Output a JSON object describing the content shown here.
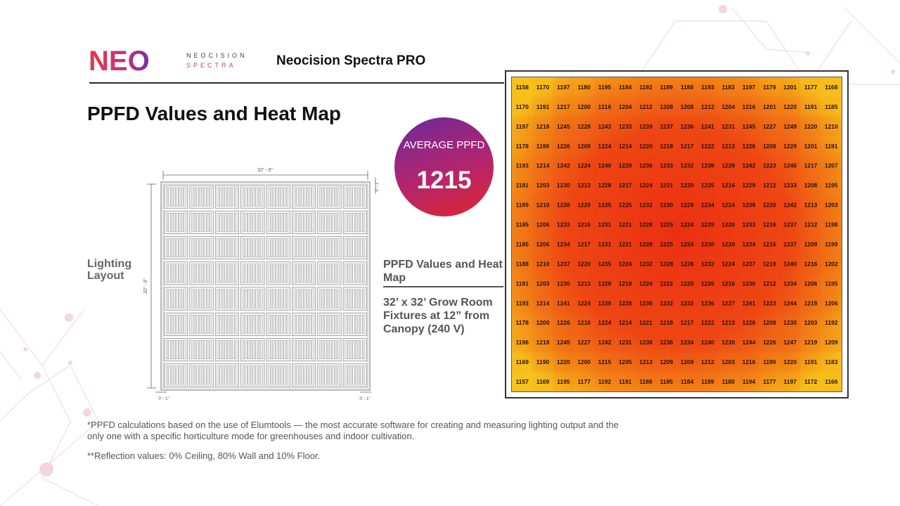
{
  "header": {
    "logo_text": "NEO",
    "brand_line1": "NEOCISION",
    "brand_line2": "SPECTRA",
    "product_title": "Neocision Spectra PRO"
  },
  "page_title": "PPFD Values and Heat Map",
  "layout": {
    "label": "Lighting Layout",
    "dim_width": "32' - 0\"",
    "dim_height": "32' - 0\"",
    "dim_offset_top": "0' - 1\"",
    "dim_offset_bl": "0' - 1\"",
    "dim_offset_br": "0' - 1\"",
    "grid_rows": 8,
    "grid_cols": 8
  },
  "average": {
    "label": "AVERAGE PPFD",
    "value": "1215"
  },
  "ppfd_label": "PPFD Values and Heat Map",
  "room_description": "32’ x 32’ Grow Room Fixtures at 12” from Canopy (240 V)",
  "chart_data": {
    "type": "heatmap",
    "title": "",
    "rows": 16,
    "cols": 16,
    "colors": {
      "low": "#f7c21b",
      "high": "#ec3a13"
    },
    "values": [
      [
        1158,
        1170,
        1197,
        1180,
        1195,
        1184,
        1192,
        1189,
        1188,
        1193,
        1183,
        1197,
        1179,
        1201,
        1177,
        1168
      ],
      [
        1170,
        1191,
        1217,
        1200,
        1216,
        1204,
        1212,
        1208,
        1208,
        1212,
        1204,
        1216,
        1201,
        1220,
        1191,
        1185
      ],
      [
        1197,
        1218,
        1245,
        1228,
        1243,
        1233,
        1239,
        1237,
        1236,
        1241,
        1231,
        1245,
        1227,
        1249,
        1220,
        1210
      ],
      [
        1178,
        1199,
        1226,
        1209,
        1224,
        1214,
        1220,
        1218,
        1217,
        1222,
        1213,
        1226,
        1208,
        1229,
        1201,
        1191
      ],
      [
        1193,
        1214,
        1242,
        1224,
        1240,
        1229,
        1236,
        1233,
        1232,
        1238,
        1228,
        1242,
        1223,
        1246,
        1217,
        1207
      ],
      [
        1181,
        1203,
        1230,
        1213,
        1228,
        1217,
        1224,
        1221,
        1220,
        1225,
        1216,
        1229,
        1212,
        1233,
        1208,
        1195
      ],
      [
        1189,
        1210,
        1238,
        1220,
        1235,
        1225,
        1232,
        1230,
        1228,
        1234,
        1224,
        1238,
        1220,
        1242,
        1213,
        1203
      ],
      [
        1185,
        1206,
        1233,
        1216,
        1231,
        1221,
        1228,
        1225,
        1224,
        1229,
        1220,
        1233,
        1216,
        1237,
        1212,
        1198
      ],
      [
        1185,
        1206,
        1234,
        1217,
        1231,
        1221,
        1228,
        1225,
        1224,
        1230,
        1220,
        1234,
        1216,
        1237,
        1209,
        1199
      ],
      [
        1188,
        1210,
        1237,
        1220,
        1235,
        1224,
        1232,
        1228,
        1228,
        1232,
        1224,
        1237,
        1219,
        1240,
        1216,
        1202
      ],
      [
        1181,
        1203,
        1230,
        1213,
        1228,
        1218,
        1224,
        1222,
        1220,
        1226,
        1216,
        1230,
        1212,
        1234,
        1206,
        1195
      ],
      [
        1193,
        1214,
        1241,
        1224,
        1239,
        1228,
        1236,
        1232,
        1232,
        1236,
        1227,
        1241,
        1223,
        1244,
        1219,
        1206
      ],
      [
        1178,
        1200,
        1226,
        1210,
        1224,
        1214,
        1221,
        1218,
        1217,
        1222,
        1213,
        1226,
        1208,
        1230,
        1203,
        1192
      ],
      [
        1196,
        1218,
        1245,
        1227,
        1242,
        1231,
        1238,
        1236,
        1234,
        1240,
        1230,
        1244,
        1226,
        1247,
        1219,
        1209
      ],
      [
        1169,
        1190,
        1220,
        1200,
        1215,
        1205,
        1213,
        1209,
        1209,
        1212,
        1203,
        1216,
        1199,
        1220,
        1191,
        1183
      ],
      [
        1157,
        1169,
        1195,
        1177,
        1192,
        1181,
        1188,
        1185,
        1184,
        1189,
        1180,
        1194,
        1177,
        1197,
        1172,
        1166
      ]
    ]
  },
  "footnotes": {
    "note1": "*PPFD calculations based on the use of Elumtools — the most accurate software for creating and measuring lighting output and the only one with a specific horticulture mode for greenhouses and indoor cultivation.",
    "note2": "**Reflection values: 0% Ceiling, 80% Wall and 10% Floor."
  }
}
